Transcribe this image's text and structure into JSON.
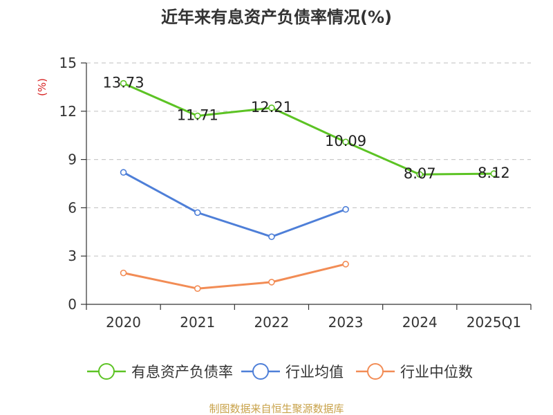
{
  "chart_data": {
    "type": "line",
    "title": "近年来有息资产负债率情况(%)",
    "ylabel": "(%)",
    "xlabel": "",
    "categories": [
      "2020",
      "2021",
      "2022",
      "2023",
      "2024",
      "2025Q1"
    ],
    "ylim": [
      0,
      15
    ],
    "yticks": [
      0,
      3,
      6,
      9,
      12,
      15
    ],
    "grid": true,
    "legend_position": "bottom",
    "series": [
      {
        "name": "有息资产负债率",
        "color": "#5cc324",
        "values": [
          13.73,
          11.71,
          12.21,
          10.09,
          8.07,
          8.12
        ],
        "labels": [
          "13.73",
          "11.71",
          "12.21",
          "10.09",
          "8.07",
          "8.12"
        ]
      },
      {
        "name": "行业均值",
        "color": "#4e7fd8",
        "values": [
          8.2,
          5.7,
          4.2,
          5.9,
          null,
          null
        ]
      },
      {
        "name": "行业中位数",
        "color": "#f28c55",
        "values": [
          1.95,
          0.98,
          1.38,
          2.5,
          null,
          null
        ]
      }
    ],
    "source": "制图数据来自恒生聚源数据库",
    "source_color": "#c8a24a",
    "ylabel_color": "#d61f1f"
  }
}
